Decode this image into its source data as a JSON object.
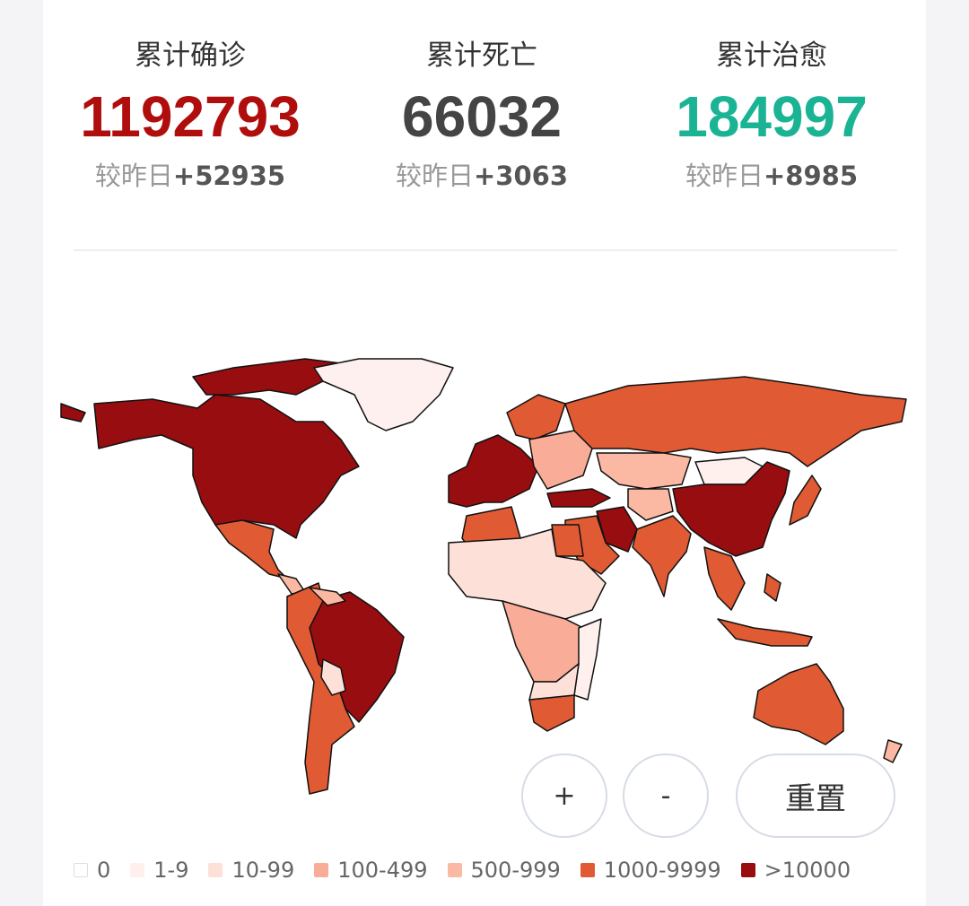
{
  "stats": [
    {
      "label": "累计确诊",
      "value": "1192793",
      "delta_prefix": "较昨日",
      "delta": "+52935",
      "color": "#b00d0d"
    },
    {
      "label": "累计死亡",
      "value": "66032",
      "delta_prefix": "较昨日",
      "delta": "+3063",
      "color": "#444444"
    },
    {
      "label": "累计治愈",
      "value": "184997",
      "delta_prefix": "较昨日",
      "delta": "+8985",
      "color": "#1ab394"
    }
  ],
  "controls": {
    "zoom_in": "+",
    "zoom_out": "-",
    "reset": "重置"
  },
  "legend": [
    {
      "label": "0",
      "color": "#ffffff"
    },
    {
      "label": "1-9",
      "color": "#fff0ee"
    },
    {
      "label": "10-99",
      "color": "#fde1d8"
    },
    {
      "label": "100-499",
      "color": "#f9ad98"
    },
    {
      "label": "500-999",
      "color": "#fbb8a2"
    },
    {
      "label": "1000-9999",
      "color": "#e05a33"
    },
    {
      "label": ">10000",
      "color": "#980d10"
    }
  ]
}
